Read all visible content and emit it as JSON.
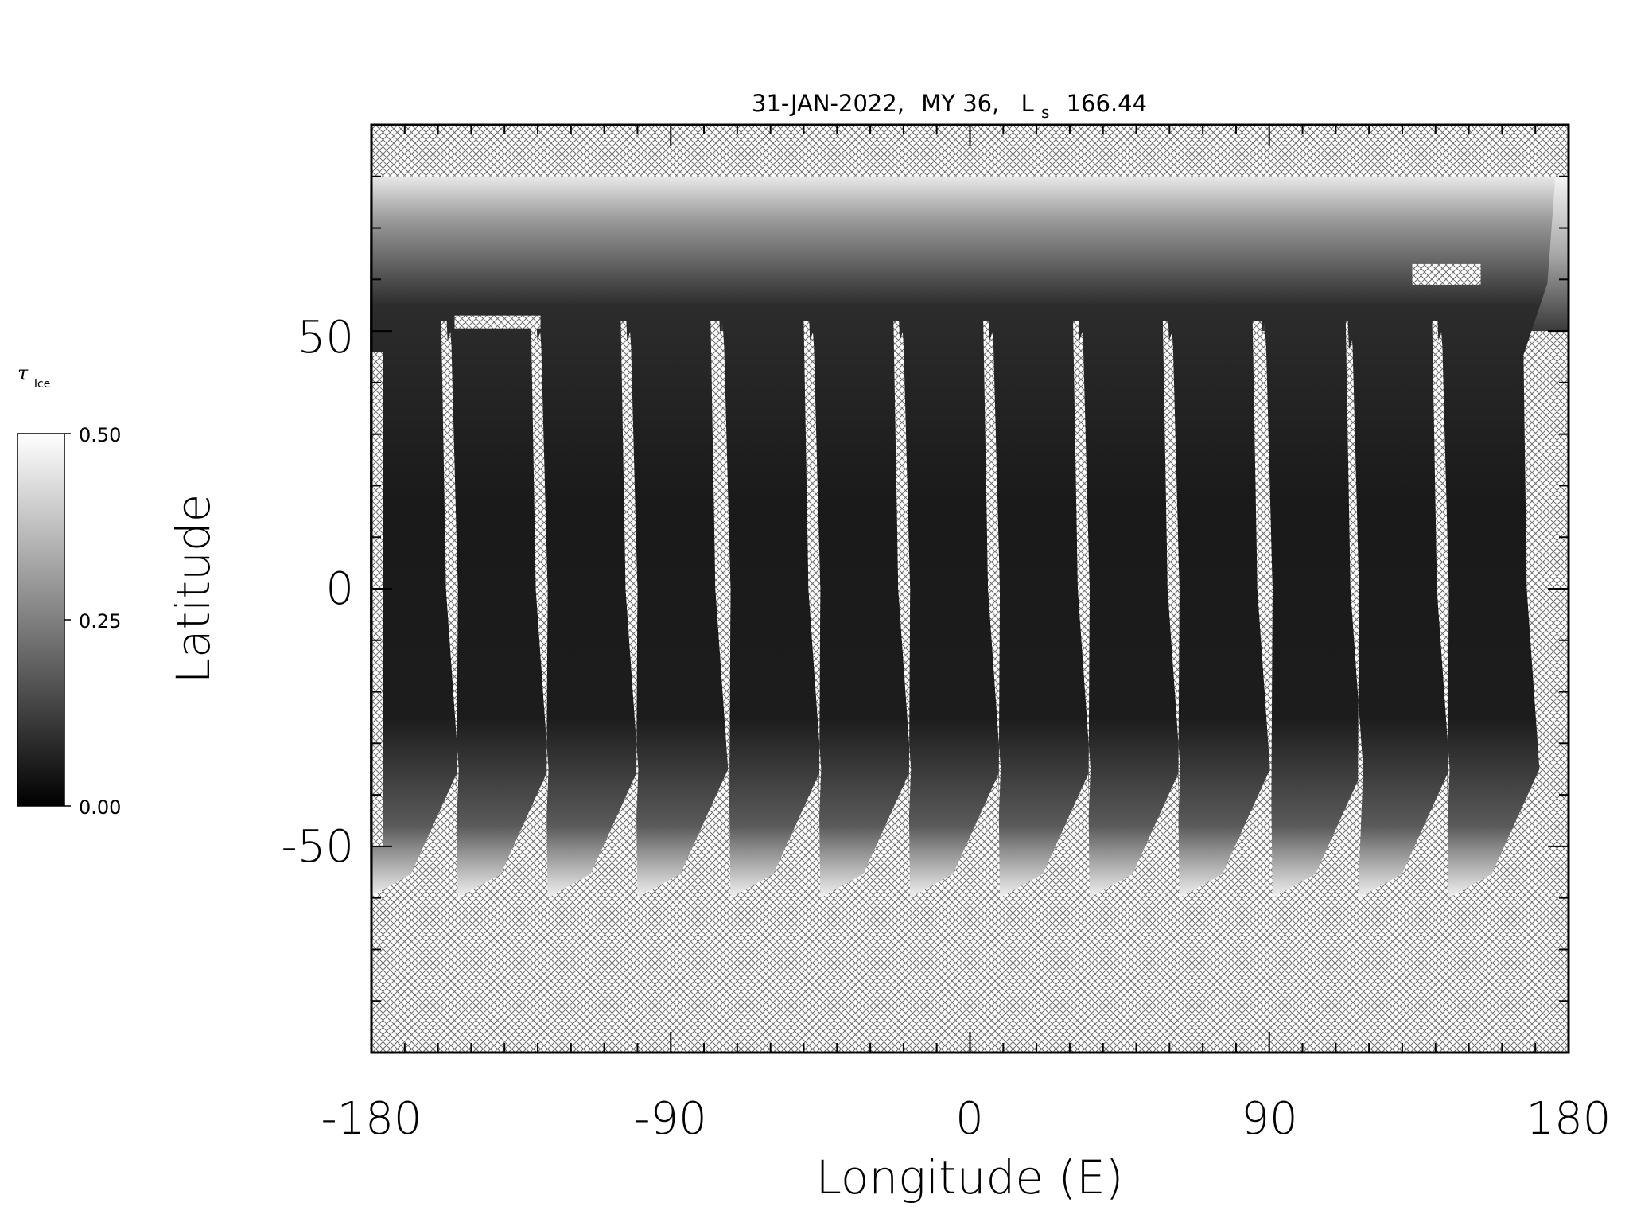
{
  "title": {
    "date": "31-JAN-2022,",
    "mars_year": "MY 36,",
    "ls_symbol": "L",
    "ls_subscript": "s",
    "ls_value": "166.44"
  },
  "axes": {
    "xlabel": "Longitude (E)",
    "ylabel": "Latitude",
    "x_ticks": [
      "-180",
      "-90",
      "0",
      "90",
      "180"
    ],
    "y_ticks": [
      "50",
      "0",
      "-50"
    ],
    "xlim": [
      -180,
      180
    ],
    "ylim": [
      -90,
      90
    ]
  },
  "colorbar": {
    "label_symbol": "τ",
    "label_subscript": "Ice",
    "ticks": [
      "0.50",
      "0.25",
      "0.00"
    ],
    "range": [
      0,
      0.5
    ],
    "colormap": "grayscale"
  },
  "chart_data": {
    "type": "heatmap",
    "title": "31-JAN-2022, MY 36, Ls 166.44",
    "xlabel": "Longitude (E)",
    "ylabel": "Latitude",
    "xlim": [
      -180,
      180
    ],
    "ylim": [
      -90,
      90
    ],
    "value_range": [
      0,
      0.5
    ],
    "no_data_pattern": "cross-hatch",
    "data_latitude_range": [
      -60,
      80
    ],
    "swaths": [
      {
        "lon_north": -180,
        "lon_south": -176,
        "equator_value": 0.08
      },
      {
        "lon_north": -150,
        "lon_south": -149,
        "equator_value": 0.07
      },
      {
        "lon_north": -123,
        "lon_south": -122,
        "equator_value": 0.09
      },
      {
        "lon_north": -95,
        "lon_south": -95,
        "equator_value": 0.08
      },
      {
        "lon_north": -68,
        "lon_south": -67,
        "equator_value": 0.07
      },
      {
        "lon_north": -41,
        "lon_south": -40,
        "equator_value": 0.08
      },
      {
        "lon_north": -13,
        "lon_south": -13,
        "equator_value": 0.06
      },
      {
        "lon_north": 14,
        "lon_south": 14,
        "equator_value": 0.07
      },
      {
        "lon_north": 41,
        "lon_south": 41,
        "equator_value": 0.06
      },
      {
        "lon_north": 68,
        "lon_south": 68,
        "equator_value": 0.07
      },
      {
        "lon_north": 96,
        "lon_south": 96,
        "equator_value": 0.06
      },
      {
        "lon_north": 123,
        "lon_south": 122,
        "equator_value": 0.08
      },
      {
        "lon_north": 150,
        "lon_south": 149,
        "equator_value": 0.07
      }
    ]
  },
  "colors": {
    "hatch": "#6e6e6e",
    "frame": "#000000",
    "ice_low": "#101010",
    "ice_high": "#ffffff"
  }
}
